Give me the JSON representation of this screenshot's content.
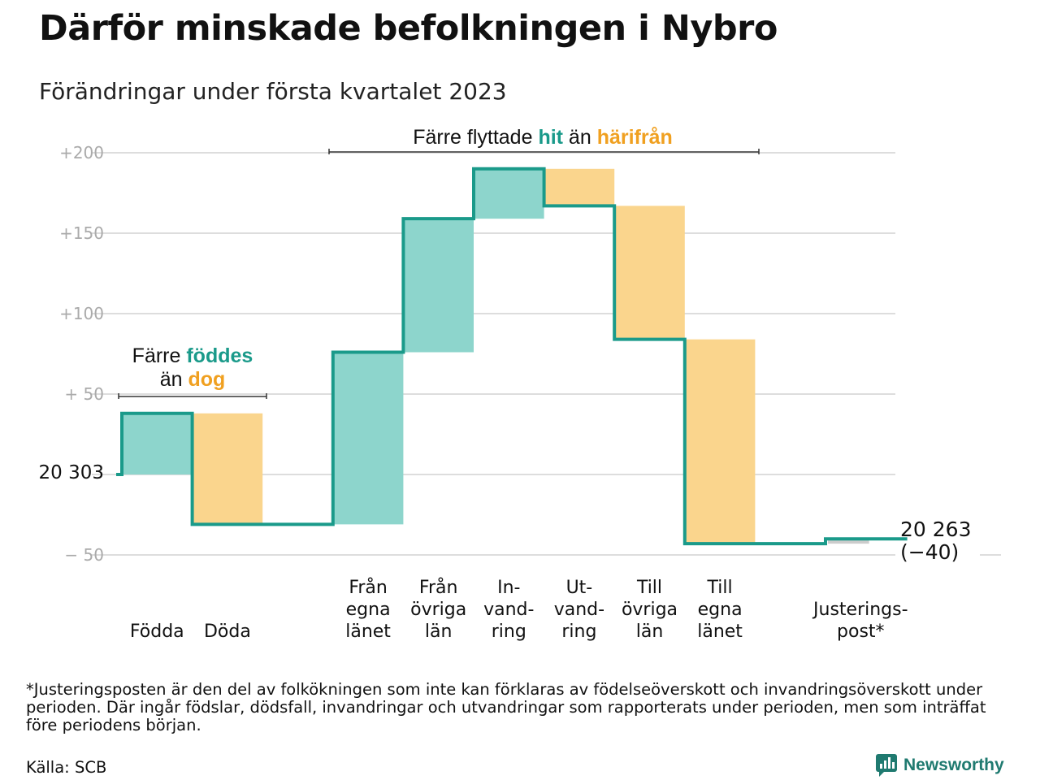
{
  "header": {
    "title": "Därför minskade befolkningen i Nybro",
    "subtitle": "Förändringar under första kvartalet 2023"
  },
  "colors": {
    "teal_fill": "#8dd5cc",
    "orange_fill": "#fad58d",
    "teal_line": "#1a9a8a",
    "teal_text": "#1a9a8a",
    "orange_text": "#f0a020",
    "grid": "#dddddd",
    "tick_text": "#aaaaaa",
    "adjust_fill": "#cccccc"
  },
  "chart_data": {
    "type": "waterfall",
    "start_label": "20 303",
    "end_label_value": "20 263",
    "end_label_change": "(−40)",
    "y_ticks": [
      {
        "value": 200,
        "label": "+200"
      },
      {
        "value": 150,
        "label": "+150"
      },
      {
        "value": 100,
        "label": "+100"
      },
      {
        "value": 50,
        "label": "+ 50"
      },
      {
        "value": 0,
        "label": ""
      },
      {
        "value": -50,
        "label": "− 50"
      }
    ],
    "ylim": [
      -50,
      200
    ],
    "steps": [
      {
        "label": [
          "Födda"
        ],
        "value": 38,
        "kind": "in"
      },
      {
        "label": [
          "Döda"
        ],
        "value": -69,
        "kind": "out"
      },
      {
        "label": [],
        "value": 0,
        "kind": "gap"
      },
      {
        "label": [
          "Från",
          "egna",
          "länet"
        ],
        "value": 107,
        "kind": "in"
      },
      {
        "label": [
          "Från",
          "övriga",
          "län"
        ],
        "value": 83,
        "kind": "in"
      },
      {
        "label": [
          "In-",
          "vand-",
          "ring"
        ],
        "value": 31,
        "kind": "in"
      },
      {
        "label": [
          "Ut-",
          "vand-",
          "ring"
        ],
        "value": -23,
        "kind": "out"
      },
      {
        "label": [
          "Till",
          "övriga",
          "län"
        ],
        "value": -83,
        "kind": "out"
      },
      {
        "label": [
          "Till",
          "egna",
          "länet"
        ],
        "value": -127,
        "kind": "out"
      },
      {
        "label": [],
        "value": 0,
        "kind": "gap"
      },
      {
        "label": [
          "Justerings-",
          "post*"
        ],
        "value": 3,
        "kind": "adjust"
      }
    ],
    "annotations": [
      {
        "id": "births",
        "parts": [
          [
            {
              "text": "Färre ",
              "style": "plain"
            },
            {
              "text": "föddes",
              "style": "teal"
            }
          ],
          [
            {
              "text": "än ",
              "style": "plain"
            },
            {
              "text": "dog",
              "style": "orange"
            }
          ]
        ]
      },
      {
        "id": "migration",
        "parts": [
          [
            {
              "text": "Färre flyttade ",
              "style": "plain"
            },
            {
              "text": "hit",
              "style": "teal"
            },
            {
              "text": " än ",
              "style": "plain"
            },
            {
              "text": "härifrån",
              "style": "orange"
            }
          ]
        ]
      }
    ]
  },
  "footnote": "*Justeringsposten är den del av folkökningen som inte kan förklaras av födelseöverskott och invandringsöverskott under perioden. Där ingår födslar, dödsfall, invandringar och utvandringar som rapporterats under perioden, men som inträffat före periodens början.",
  "source": "Källa: SCB",
  "logo": {
    "text": "Newsworthy",
    "icon": "newsworthy-chart-icon"
  }
}
